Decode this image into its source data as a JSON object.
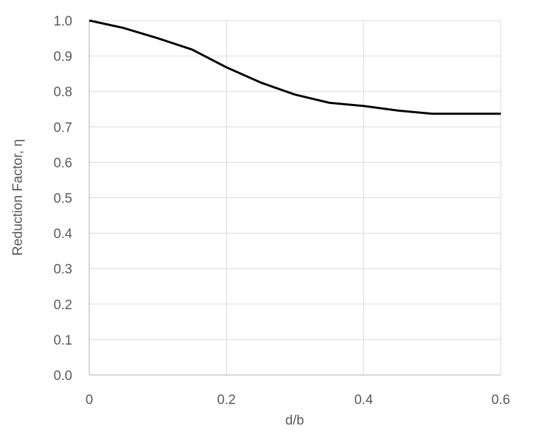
{
  "chart_data": {
    "type": "line",
    "title": "",
    "xlabel": "d/b",
    "ylabel": "Reduction Factor, η",
    "xlim": [
      0,
      0.6
    ],
    "ylim": [
      0,
      1.0
    ],
    "x_ticks": [
      "0",
      "0.2",
      "0.4",
      "0.6"
    ],
    "y_ticks": [
      "0.0",
      "0.1",
      "0.2",
      "0.3",
      "0.4",
      "0.5",
      "0.6",
      "0.7",
      "0.8",
      "0.9",
      "1.0"
    ],
    "grid": true,
    "legend": "none",
    "series": [
      {
        "x": [
          0,
          0.05,
          0.1,
          0.15,
          0.2,
          0.25,
          0.3,
          0.35,
          0.4,
          0.45,
          0.5,
          0.55,
          0.6
        ],
        "y": [
          1.0,
          0.979,
          0.95,
          0.918,
          0.868,
          0.825,
          0.791,
          0.768,
          0.759,
          0.746,
          0.737,
          0.737,
          0.737
        ],
        "color": "#000000"
      }
    ],
    "colors": {
      "grid": "#d9d9d9",
      "axis": "#bfbfbf",
      "text": "#595959",
      "line": "#000000"
    }
  }
}
